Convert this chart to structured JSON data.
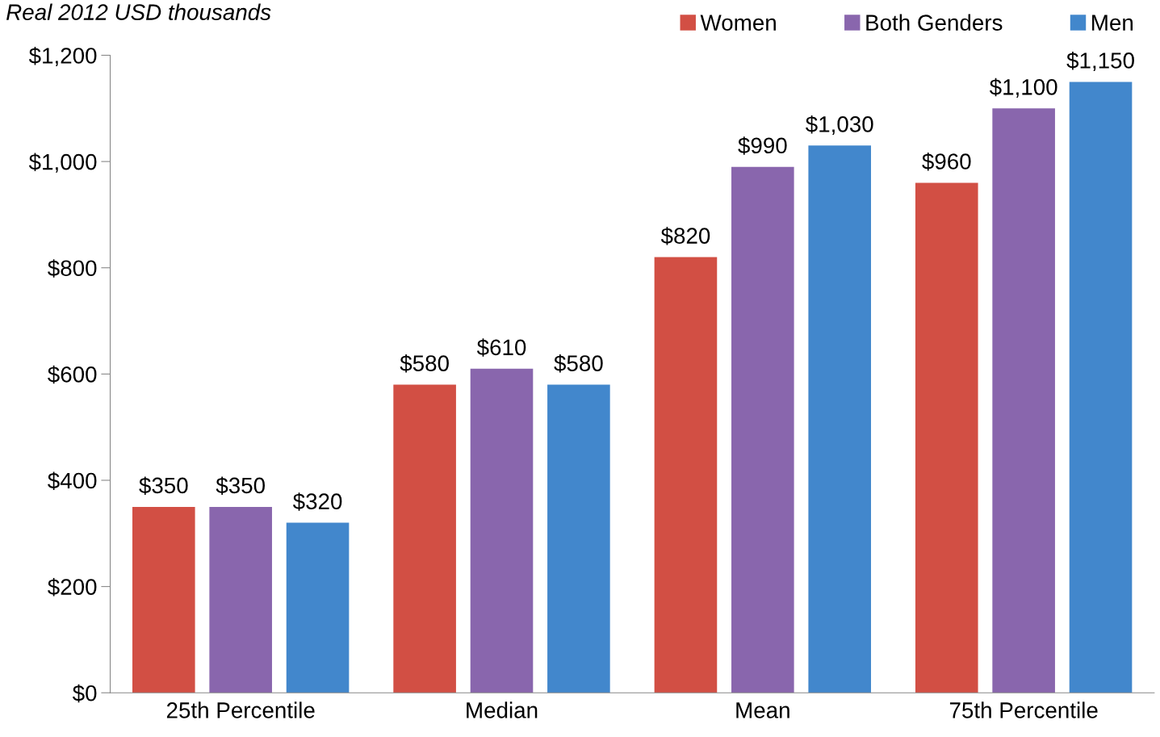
{
  "chart_data": {
    "type": "bar",
    "subtitle": "Real 2012 USD thousands",
    "categories": [
      "25th Percentile",
      "Median",
      "Mean",
      "75th Percentile"
    ],
    "series": [
      {
        "name": "Women",
        "color": "#d24f44",
        "values": [
          350,
          580,
          820,
          960
        ],
        "value_labels": [
          "$350",
          "$580",
          "$820",
          "$960"
        ]
      },
      {
        "name": "Both Genders",
        "color": "#8966ad",
        "values": [
          350,
          610,
          990,
          1100
        ],
        "value_labels": [
          "$350",
          "$610",
          "$990",
          "$1,100"
        ]
      },
      {
        "name": "Men",
        "color": "#4287cc",
        "values": [
          320,
          580,
          1030,
          1150
        ],
        "value_labels": [
          "$320",
          "$580",
          "$1,030",
          "$1,150"
        ]
      }
    ],
    "ylim": [
      0,
      1200
    ],
    "yticks": [
      {
        "value": 0,
        "label": "$0"
      },
      {
        "value": 200,
        "label": "$200"
      },
      {
        "value": 400,
        "label": "$400"
      },
      {
        "value": 600,
        "label": "$600"
      },
      {
        "value": 800,
        "label": "$800"
      },
      {
        "value": 1000,
        "label": "$1,000"
      },
      {
        "value": 1200,
        "label": "$1,200"
      }
    ],
    "grid": false,
    "legend": "top right"
  }
}
